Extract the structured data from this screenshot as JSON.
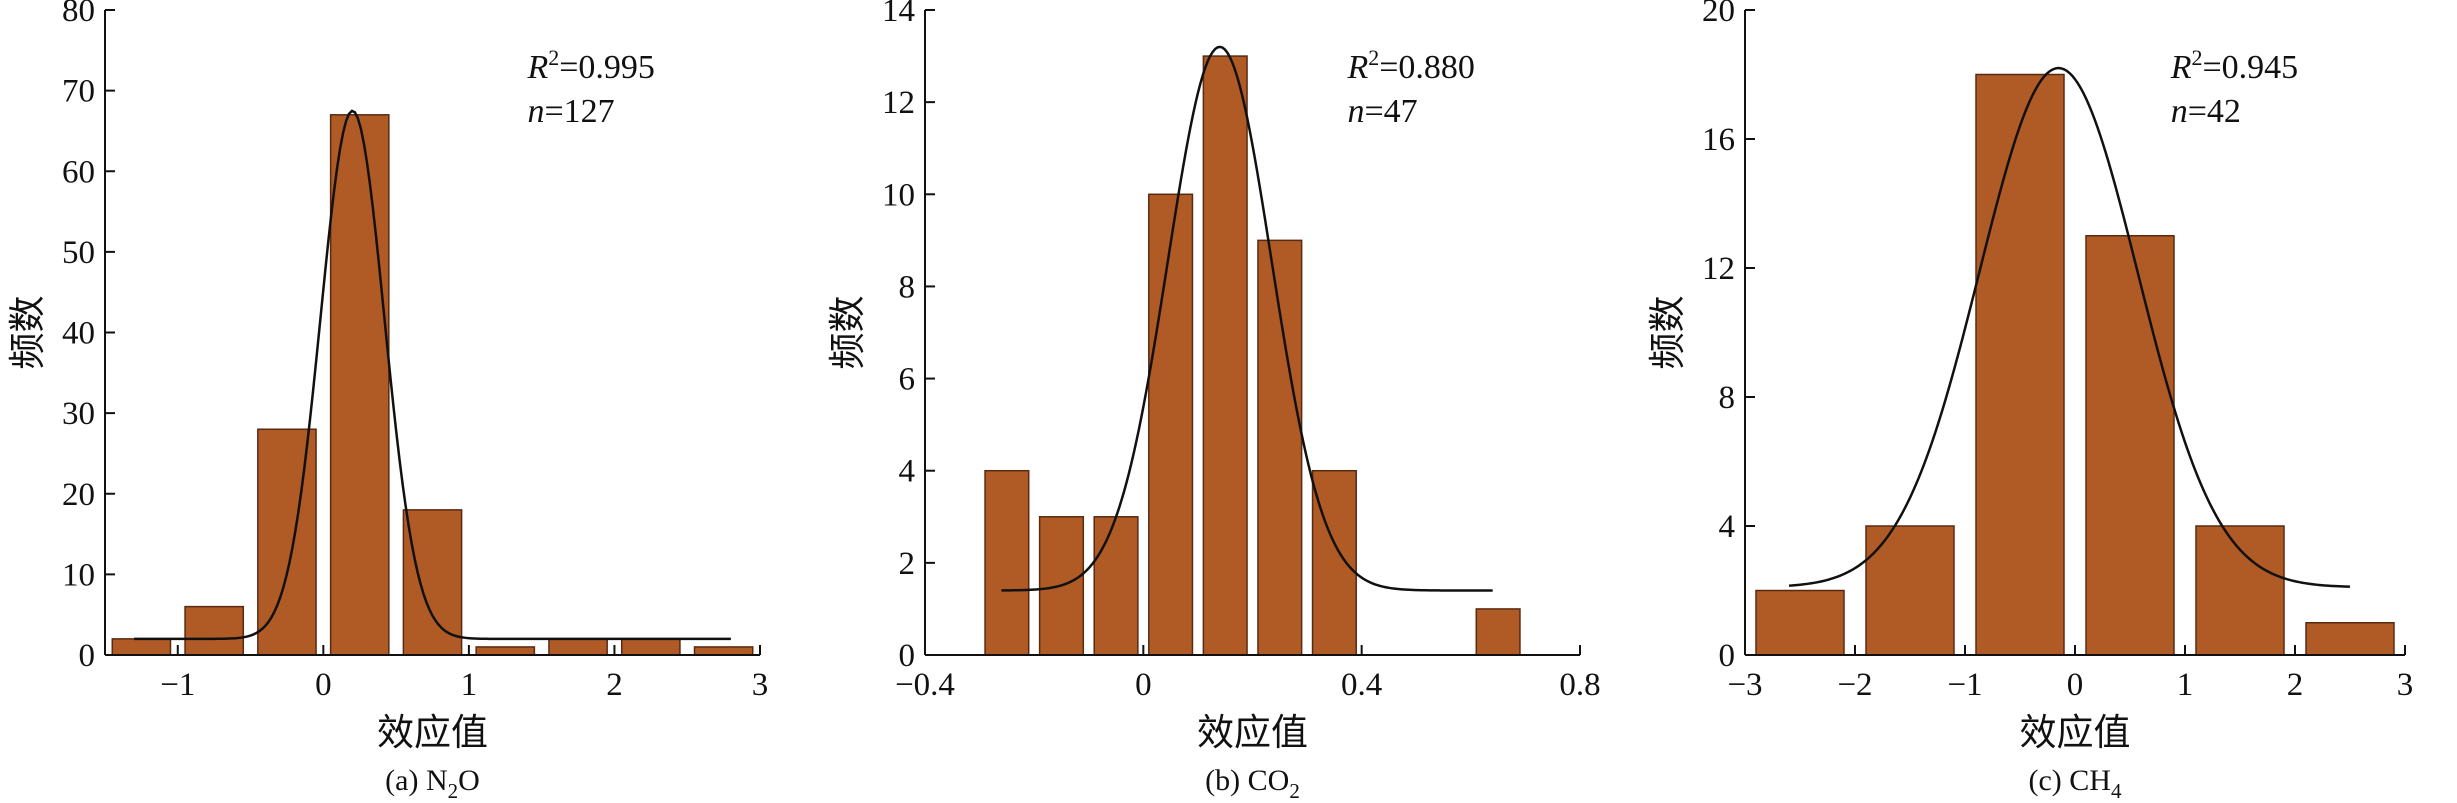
{
  "colors": {
    "bar": "#b05a26",
    "bar_edge": "#5a2a10",
    "curve": "#111111",
    "axis": "#111111"
  },
  "chart_data": [
    {
      "type": "bar",
      "caption_prefix": "(a) N",
      "caption_sub": "2",
      "caption_suffix": "O",
      "xlabel": "效应值",
      "ylabel": "频数",
      "xlim": [
        -1.5,
        3.0
      ],
      "ylim": [
        0,
        80
      ],
      "xticks": [
        -1,
        0,
        1,
        2,
        3
      ],
      "xtick_labels": [
        "−1",
        "0",
        "1",
        "2",
        "3"
      ],
      "yticks": [
        0,
        10,
        20,
        30,
        40,
        50,
        60,
        70,
        80
      ],
      "bar_width": 0.4,
      "bars": [
        {
          "x": -1.25,
          "value": 2
        },
        {
          "x": -0.75,
          "value": 6
        },
        {
          "x": -0.25,
          "value": 28
        },
        {
          "x": 0.25,
          "value": 67
        },
        {
          "x": 0.75,
          "value": 18
        },
        {
          "x": 1.25,
          "value": 1
        },
        {
          "x": 1.75,
          "value": 2
        },
        {
          "x": 2.25,
          "value": 2
        },
        {
          "x": 2.75,
          "value": 1
        }
      ],
      "fit": {
        "amplitude": 65.5,
        "center": 0.2,
        "sigma": 0.22,
        "baseline": 2.0,
        "x_range": [
          -1.3,
          2.8
        ]
      },
      "r2_label": "R",
      "r2_value": "=0.995",
      "n_label": "n",
      "n_value": "=127"
    },
    {
      "type": "bar",
      "caption_prefix": "(b) CO",
      "caption_sub": "2",
      "caption_suffix": "",
      "xlabel": "效应值",
      "ylabel": "频数",
      "xlim": [
        -0.4,
        0.8
      ],
      "ylim": [
        0,
        14
      ],
      "xticks": [
        -0.4,
        0,
        0.4,
        0.8
      ],
      "xtick_labels": [
        "−0.4",
        "0",
        "0.4",
        "0.8"
      ],
      "yticks": [
        0,
        2,
        4,
        6,
        8,
        10,
        12,
        14
      ],
      "bar_width": 0.08,
      "bars": [
        {
          "x": -0.25,
          "value": 4
        },
        {
          "x": -0.15,
          "value": 3
        },
        {
          "x": -0.05,
          "value": 3
        },
        {
          "x": 0.05,
          "value": 10
        },
        {
          "x": 0.15,
          "value": 13
        },
        {
          "x": 0.25,
          "value": 9
        },
        {
          "x": 0.35,
          "value": 4
        },
        {
          "x": 0.65,
          "value": 1
        }
      ],
      "fit": {
        "amplitude": 11.8,
        "center": 0.14,
        "sigma": 0.095,
        "baseline": 1.4,
        "x_range": [
          -0.26,
          0.64
        ]
      },
      "r2_label": "R",
      "r2_value": "=0.880",
      "n_label": "n",
      "n_value": "=47"
    },
    {
      "type": "bar",
      "caption_prefix": "(c) CH",
      "caption_sub": "4",
      "caption_suffix": "",
      "xlabel": "效应值",
      "ylabel": "频数",
      "xlim": [
        -3,
        3
      ],
      "ylim": [
        0,
        20
      ],
      "xticks": [
        -3,
        -2,
        -1,
        0,
        1,
        2,
        3
      ],
      "xtick_labels": [
        "−3",
        "−2",
        "−1",
        "0",
        "1",
        "2",
        "3"
      ],
      "yticks": [
        0,
        4,
        8,
        12,
        16,
        20
      ],
      "bar_width": 0.8,
      "bars": [
        {
          "x": -2.5,
          "value": 2
        },
        {
          "x": -1.5,
          "value": 4
        },
        {
          "x": -0.5,
          "value": 18
        },
        {
          "x": 0.5,
          "value": 13
        },
        {
          "x": 1.5,
          "value": 4
        },
        {
          "x": 2.5,
          "value": 1
        }
      ],
      "fit": {
        "amplitude": 16.1,
        "center": -0.15,
        "sigma": 0.72,
        "baseline": 2.1,
        "x_range": [
          -2.6,
          2.5
        ]
      },
      "r2_label": "R",
      "r2_value": "=0.945",
      "n_label": "n",
      "n_value": "=42"
    }
  ]
}
